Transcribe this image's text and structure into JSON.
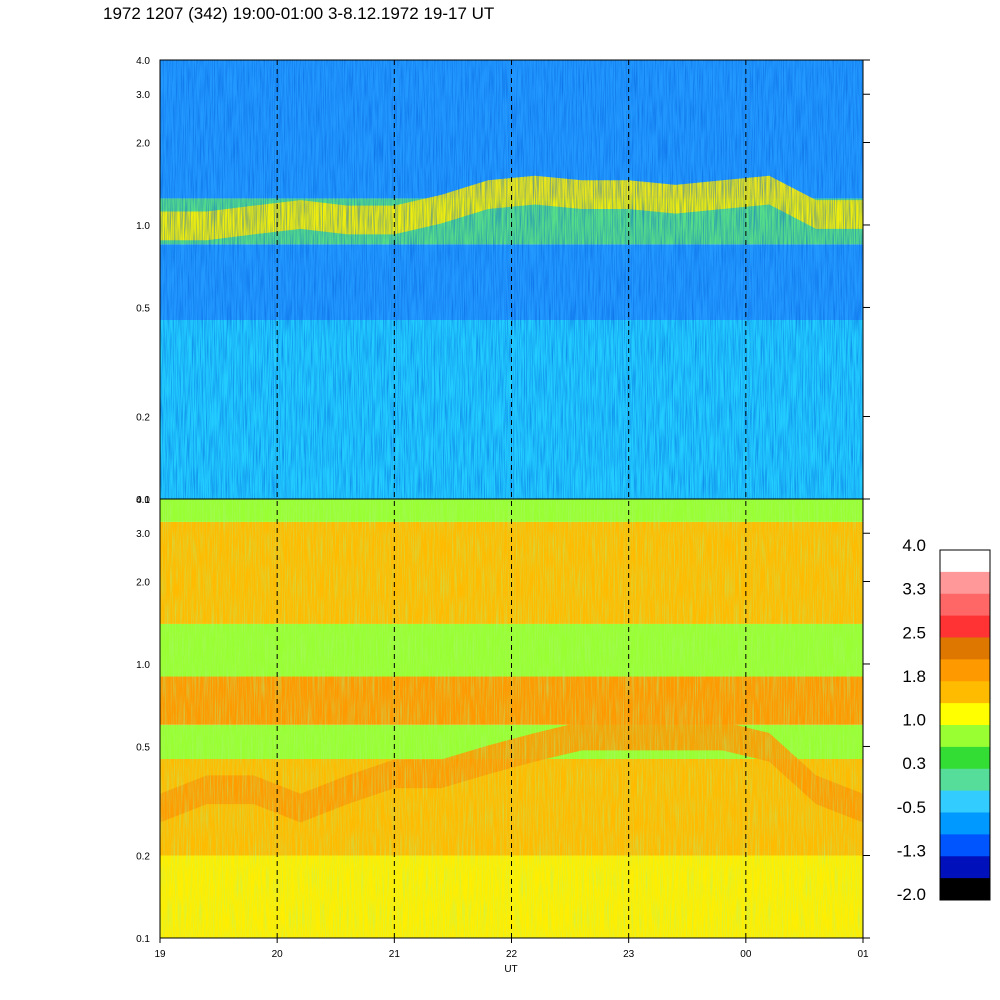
{
  "title": "1972 1207 (342) 19:00-01:00 3-8.12.1972  19-17 UT",
  "chart_data": [
    {
      "type": "heatmap",
      "panel": "upper",
      "ylabel": "",
      "y_scale": "log",
      "ylim": [
        0.1,
        4.0
      ],
      "y_ticks": [
        0.1,
        0.2,
        0.5,
        1.0,
        2.0,
        3.0,
        4.0
      ],
      "y_tick_labels": [
        "0.1",
        "0.2",
        "0.5",
        "1.0",
        "2.0",
        "3.0",
        "4.0"
      ],
      "bands": [
        {
          "y": [
            0.1,
            0.45
          ],
          "color": "#22ccff"
        },
        {
          "y": [
            0.45,
            0.85
          ],
          "color": "#2299ff"
        },
        {
          "y": [
            0.85,
            1.25
          ],
          "color": "#55dd88"
        },
        {
          "y": [
            1.25,
            4.0
          ],
          "color": "#2299ff"
        }
      ],
      "ridge_y": [
        1.0,
        1.0,
        1.05,
        1.1,
        1.05,
        1.05,
        1.15,
        1.3,
        1.35,
        1.3,
        1.3,
        1.25,
        1.3,
        1.35,
        1.1,
        1.1
      ],
      "ridge_color": "#ffee00"
    },
    {
      "type": "heatmap",
      "panel": "lower",
      "ylabel": "",
      "y_scale": "log",
      "ylim": [
        0.1,
        4.0
      ],
      "y_ticks": [
        0.1,
        0.2,
        0.5,
        1.0,
        2.0,
        3.0,
        4.0
      ],
      "y_tick_labels": [
        "0.1",
        "0.2",
        "0.5",
        "1.0",
        "2.0",
        "3.0",
        "4.0"
      ],
      "bands": [
        {
          "y": [
            0.1,
            0.2
          ],
          "color": "#ffee00"
        },
        {
          "y": [
            0.2,
            0.45
          ],
          "color": "#ffbb00"
        },
        {
          "y": [
            0.45,
            0.6
          ],
          "color": "#99ff33"
        },
        {
          "y": [
            0.6,
            0.9
          ],
          "color": "#ff9900"
        },
        {
          "y": [
            0.9,
            1.4
          ],
          "color": "#99ff33"
        },
        {
          "y": [
            1.4,
            3.3
          ],
          "color": "#ffbb00"
        },
        {
          "y": [
            3.3,
            4.0
          ],
          "color": "#99ff33"
        }
      ],
      "ridge_y": [
        0.3,
        0.35,
        0.35,
        0.3,
        0.35,
        0.4,
        0.4,
        0.45,
        0.5,
        0.55,
        0.55,
        0.55,
        0.55,
        0.5,
        0.35,
        0.3
      ],
      "ridge_color": "#ff9900"
    }
  ],
  "x_axis": {
    "label": "UT",
    "tick_labels": [
      "19",
      "20",
      "21",
      "22",
      "23",
      "00",
      "01"
    ],
    "dashed_lines_at": [
      "20",
      "21",
      "22",
      "23",
      "00"
    ]
  },
  "colorbar": {
    "labels": [
      "4.0",
      "3.3",
      "2.5",
      "1.8",
      "1.0",
      "0.3",
      "-0.5",
      "-1.3",
      "-2.0"
    ],
    "colors_top_to_bottom": [
      "#ffffff",
      "#ff9999",
      "#ff6666",
      "#ff3333",
      "#dd7700",
      "#ff9900",
      "#ffbb00",
      "#ffff00",
      "#99ff33",
      "#33dd33",
      "#55dd99",
      "#33ccff",
      "#0099ff",
      "#0055ff",
      "#0011bb",
      "#000000"
    ]
  }
}
